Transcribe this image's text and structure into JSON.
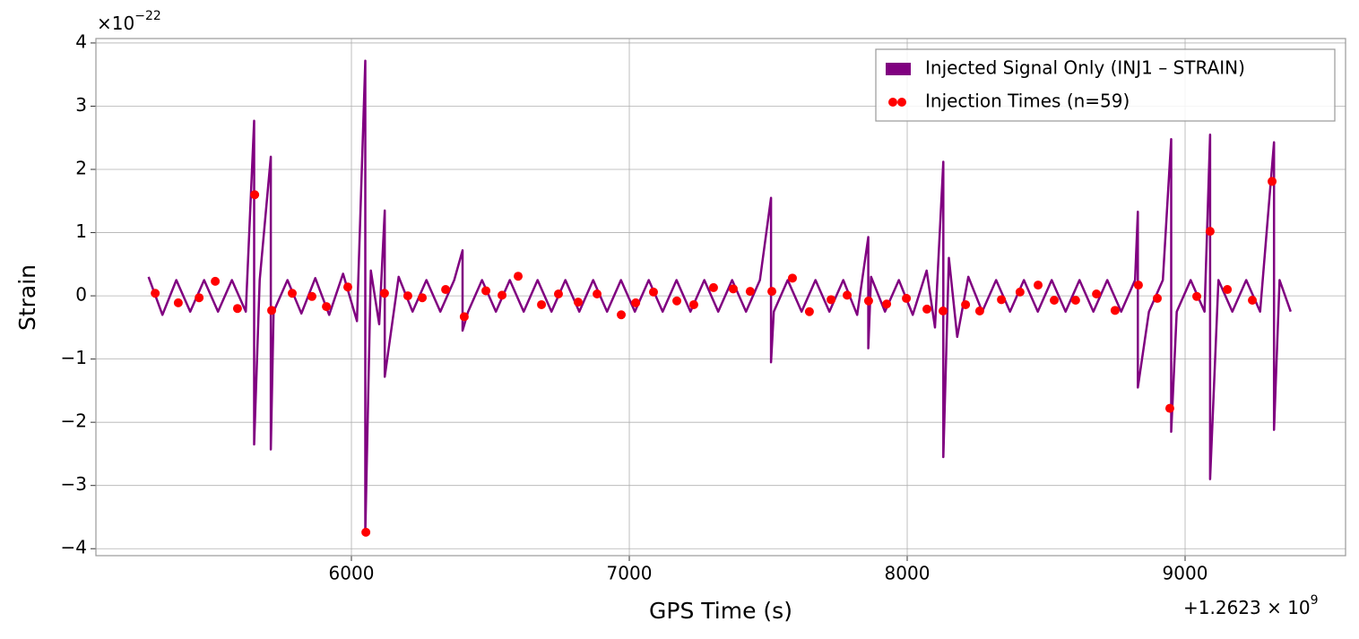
{
  "chart_data": {
    "type": "line",
    "x_label": "GPS Time (s)",
    "y_label": "Strain",
    "x_offset_label": {
      "base": "+1.2623 × 10",
      "exponent": "9"
    },
    "y_offset_label": {
      "base": "×10",
      "exponent": "−22"
    },
    "xlim": [
      5080.6,
      9577.4
    ],
    "ylim": [
      -4.11,
      4.07
    ],
    "xticks": [
      6000,
      7000,
      8000,
      9000
    ],
    "yticks": [
      {
        "value": -4,
        "label": "−4"
      },
      {
        "value": -3,
        "label": "−3"
      },
      {
        "value": -2,
        "label": "−2"
      },
      {
        "value": -1,
        "label": "−1"
      },
      0,
      1,
      2,
      3,
      4
    ],
    "grid": true,
    "legend": "upper right",
    "series": [
      {
        "name": "Injected Signal Only (INJ1 – STRAIN)",
        "color": "#800080",
        "type": "line",
        "x": [
          5270,
          5320,
          5370,
          5420,
          5470,
          5520,
          5570,
          5620,
          5650,
          5650,
          5670,
          5710,
          5710,
          5720,
          5770,
          5820,
          5870,
          5920,
          5970,
          6020,
          6050,
          6050,
          6070,
          6100,
          6120,
          6120,
          6170,
          6220,
          6270,
          6320,
          6370,
          6400,
          6400,
          6420,
          6470,
          6520,
          6570,
          6620,
          6670,
          6720,
          6770,
          6820,
          6870,
          6920,
          6970,
          7020,
          7070,
          7120,
          7170,
          7220,
          7270,
          7320,
          7370,
          7420,
          7470,
          7510,
          7510,
          7520,
          7570,
          7620,
          7670,
          7720,
          7770,
          7820,
          7860,
          7860,
          7870,
          7920,
          7970,
          8020,
          8070,
          8100,
          8130,
          8130,
          8150,
          8180,
          8220,
          8270,
          8320,
          8370,
          8420,
          8470,
          8520,
          8570,
          8620,
          8670,
          8720,
          8770,
          8820,
          8830,
          8830,
          8870,
          8920,
          8950,
          8950,
          8970,
          9020,
          9070,
          9090,
          9090,
          9120,
          9170,
          9220,
          9270,
          9320,
          9320,
          9340,
          9380
        ],
        "values": [
          0.3,
          -0.3,
          0.25,
          -0.25,
          0.25,
          -0.25,
          0.25,
          -0.25,
          2.77,
          -2.35,
          0.25,
          2.2,
          -2.43,
          -0.25,
          0.25,
          -0.28,
          0.28,
          -0.3,
          0.35,
          -0.4,
          3.72,
          -3.75,
          0.4,
          -0.45,
          1.35,
          -1.28,
          0.3,
          -0.25,
          0.25,
          -0.25,
          0.25,
          0.72,
          -0.55,
          -0.25,
          0.25,
          -0.25,
          0.25,
          -0.25,
          0.25,
          -0.25,
          0.25,
          -0.25,
          0.25,
          -0.25,
          0.25,
          -0.25,
          0.25,
          -0.25,
          0.25,
          -0.25,
          0.25,
          -0.25,
          0.25,
          -0.25,
          0.25,
          1.55,
          -1.05,
          -0.25,
          0.25,
          -0.25,
          0.25,
          -0.25,
          0.25,
          -0.3,
          0.93,
          -0.83,
          0.3,
          -0.25,
          0.25,
          -0.3,
          0.4,
          -0.5,
          2.12,
          -2.55,
          0.6,
          -0.65,
          0.3,
          -0.25,
          0.25,
          -0.25,
          0.25,
          -0.25,
          0.25,
          -0.25,
          0.25,
          -0.25,
          0.25,
          -0.25,
          0.25,
          1.33,
          -1.45,
          -0.25,
          0.25,
          2.48,
          -2.15,
          -0.25,
          0.25,
          -0.25,
          2.55,
          -2.9,
          0.25,
          -0.25,
          0.25,
          -0.25,
          2.43,
          -2.12,
          0.25,
          -0.25
        ]
      },
      {
        "name": "Injection Times (n=59)",
        "color": "#ff0000",
        "type": "scatter",
        "x": [
          5294,
          5377,
          5452,
          5510,
          5590,
          5652,
          5713,
          5787,
          5858,
          5910,
          5987,
          6052,
          6119,
          6203,
          6255,
          6339,
          6406,
          6484,
          6542,
          6600,
          6684,
          6745,
          6816,
          6884,
          6971,
          7023,
          7087,
          7171,
          7232,
          7303,
          7374,
          7435,
          7513,
          7587,
          7648,
          7726,
          7784,
          7861,
          7926,
          7997,
          8071,
          8129,
          8210,
          8261,
          8339,
          8406,
          8471,
          8529,
          8606,
          8681,
          8748,
          8832,
          8900,
          8945,
          9042,
          9090,
          9152,
          9242,
          9313
        ],
        "values": [
          0.04,
          -0.11,
          -0.03,
          0.23,
          -0.2,
          1.6,
          -0.23,
          0.04,
          -0.01,
          -0.17,
          0.14,
          -3.74,
          0.04,
          0.0,
          -0.03,
          0.1,
          -0.33,
          0.08,
          0.01,
          0.31,
          -0.14,
          0.03,
          -0.1,
          0.03,
          -0.3,
          -0.11,
          0.06,
          -0.08,
          -0.14,
          0.13,
          0.11,
          0.07,
          0.07,
          0.28,
          -0.25,
          -0.06,
          0.01,
          -0.08,
          -0.13,
          -0.04,
          -0.21,
          -0.24,
          -0.14,
          -0.24,
          -0.06,
          0.06,
          0.17,
          -0.07,
          -0.07,
          0.03,
          -0.23,
          0.17,
          -0.04,
          -1.78,
          -0.01,
          1.02,
          0.1,
          -0.07,
          1.81
        ]
      }
    ]
  }
}
